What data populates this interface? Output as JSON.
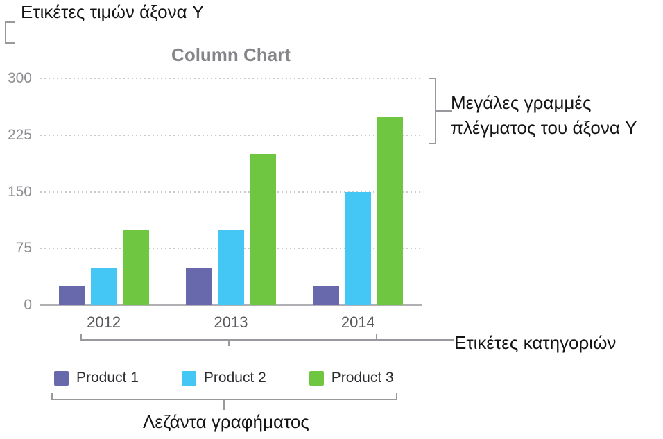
{
  "annotations": {
    "y_value_labels": "Ετικέτες τιμών άξονα Y",
    "y_gridlines": "Μεγάλες γραμμές πλέγματος του άξονα Y",
    "category_labels": "Ετικέτες κατηγοριών",
    "chart_legend": "Λεζάντα γραφήματος"
  },
  "chart_data": {
    "type": "bar",
    "title": "Column Chart",
    "categories": [
      "2012",
      "2013",
      "2014"
    ],
    "series": [
      {
        "name": "Product 1",
        "color": "#6868ad",
        "values": [
          25,
          50,
          25
        ]
      },
      {
        "name": "Product 2",
        "color": "#44c7f4",
        "values": [
          50,
          100,
          150
        ]
      },
      {
        "name": "Product 3",
        "color": "#6fc640",
        "values": [
          100,
          200,
          250
        ]
      }
    ],
    "xlabel": "",
    "ylabel": "",
    "ylim": [
      0,
      300
    ],
    "y_ticks": [
      0,
      75,
      150,
      225,
      300
    ],
    "gridlines": "dotted-horizontal-major",
    "legend_position": "bottom"
  },
  "colors": {
    "background": "#ffffff",
    "callout_line": "#98989d",
    "annotation_text": "#141414",
    "title_text": "#85858a",
    "axis_tick_text": "#8e8e93",
    "category_text": "#58585d",
    "legend_text": "#2b2b30",
    "gridline": "#cbcbd0",
    "baseline": "#b0b0b5"
  }
}
